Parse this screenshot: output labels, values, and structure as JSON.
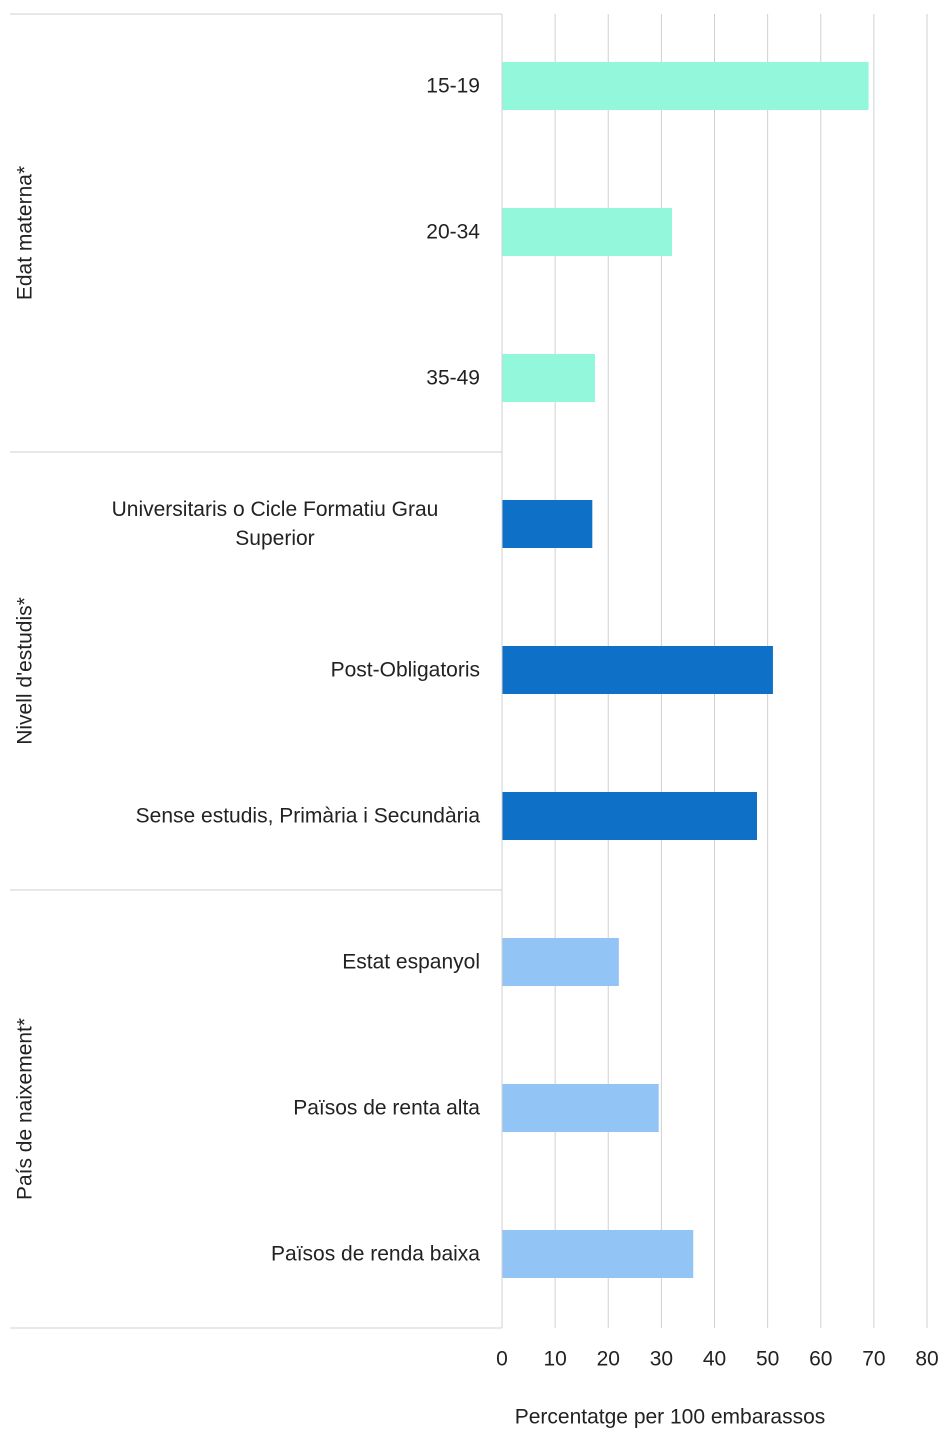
{
  "chart_data": {
    "type": "bar",
    "orientation": "horizontal",
    "x_label": "Percentatge per 100 embarassos",
    "xlim": [
      0,
      80
    ],
    "xticks": [
      0,
      10,
      20,
      30,
      40,
      50,
      60,
      70,
      80
    ],
    "grid": true,
    "groups": [
      {
        "name": "Edat materna*",
        "color": "#93f7dc",
        "categories": [
          "15-19",
          "20-34",
          "35-49"
        ],
        "values": [
          69,
          32,
          17.5
        ]
      },
      {
        "name": "Nivell d'estudis*",
        "color": "#0f70c8",
        "categories": [
          "Universitaris o Cicle Formatiu Grau Superior",
          "Post-Obligatoris",
          "Sense estudis, Primària i Secundària"
        ],
        "values": [
          17,
          51,
          48
        ]
      },
      {
        "name": "País de naixement*",
        "color": "#92c5f5",
        "categories": [
          "Estat espanyol",
          "Països de renta alta",
          "Països de renda baixa"
        ],
        "values": [
          22,
          29.5,
          36
        ]
      }
    ]
  }
}
